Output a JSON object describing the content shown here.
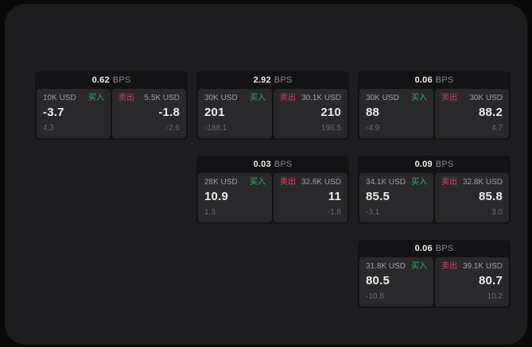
{
  "labels": {
    "bps": "BPS",
    "buy": "买入",
    "sell": "卖出"
  },
  "colors": {
    "outer_bg": "#09090a",
    "panel_bg": "#1e1e20",
    "card_bg": "#131315",
    "tile_bg": "#29292c",
    "text_primary": "#ececee",
    "text_secondary": "#a0a0a5",
    "text_muted": "#6f6f74",
    "buy_green": "#38b565",
    "sell_red": "#d44a63"
  },
  "cards": [
    {
      "bps": "0.62",
      "buy": {
        "size": "10K USD",
        "value": "-3.7",
        "sub": "4.3"
      },
      "sell": {
        "size": "5.5K USD",
        "value": "-1.8",
        "sub": "-2.6"
      }
    },
    {
      "bps": "2.92",
      "buy": {
        "size": "30K USD",
        "value": "201",
        "sub": "-188.1"
      },
      "sell": {
        "size": "30.1K USD",
        "value": "210",
        "sub": "196.5"
      }
    },
    {
      "bps": "0.06",
      "buy": {
        "size": "30K USD",
        "value": "88",
        "sub": "-4.9"
      },
      "sell": {
        "size": "30K USD",
        "value": "88.2",
        "sub": "4.7"
      }
    },
    {
      "bps": "0.03",
      "buy": {
        "size": "28K USD",
        "value": "10.9",
        "sub": "1.3"
      },
      "sell": {
        "size": "32.6K USD",
        "value": "11",
        "sub": "-1.8"
      }
    },
    {
      "bps": "0.09",
      "buy": {
        "size": "34.1K USD",
        "value": "85.5",
        "sub": "-3.1"
      },
      "sell": {
        "size": "32.8K USD",
        "value": "85.8",
        "sub": "3.0"
      }
    },
    {
      "bps": "0.06",
      "buy": {
        "size": "31.8K USD",
        "value": "80.5",
        "sub": "-10.8"
      },
      "sell": {
        "size": "39.1K USD",
        "value": "80.7",
        "sub": "10.2"
      }
    }
  ]
}
